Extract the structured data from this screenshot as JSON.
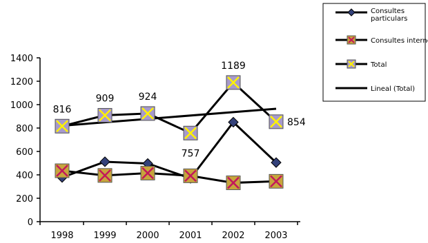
{
  "chart_data": {
    "type": "line",
    "x": [
      "1998",
      "1999",
      "2000",
      "2001",
      "2002",
      "2003"
    ],
    "ylim": [
      0,
      1400
    ],
    "yticks": [
      0,
      200,
      400,
      600,
      800,
      1000,
      1200,
      1400
    ],
    "grid": false,
    "legend_position": "top-right",
    "series": [
      {
        "name": "Consultes particulars",
        "values": [
          378,
          512,
          497,
          370,
          850,
          505
        ],
        "marker": "diamond",
        "marker_color": "#33417A",
        "line_color": "#000000"
      },
      {
        "name": "Consultes internes",
        "values": [
          435,
          395,
          415,
          392,
          332,
          345
        ],
        "marker": "x-box",
        "marker_color": "#C7A53C",
        "cross_color": "#C2185B",
        "line_color": "#000000"
      },
      {
        "name": "Total",
        "values": [
          816,
          909,
          924,
          757,
          1189,
          854
        ],
        "marker": "x-box",
        "marker_color": "#A79ACC",
        "cross_color": "#FFF200",
        "line_color": "#000000",
        "data_labels": [
          "816",
          "909",
          "924",
          "757",
          "1189",
          "854"
        ]
      },
      {
        "name": "Lineal (Total)",
        "values": [
          820,
          849,
          878,
          907,
          936,
          965
        ],
        "marker": "none",
        "line_color": "#000000"
      }
    ]
  }
}
